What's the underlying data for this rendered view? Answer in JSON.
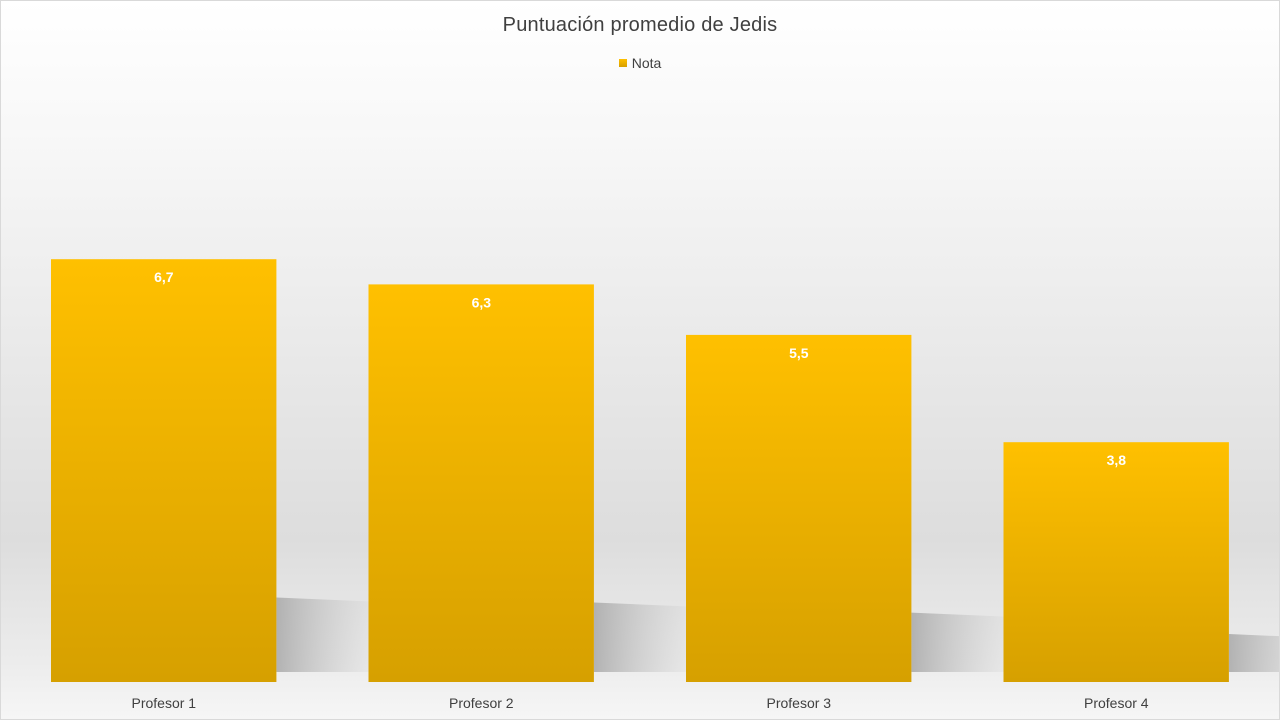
{
  "chart_data": {
    "type": "bar",
    "title": "Puntuación promedio de Jedis",
    "categories": [
      "Profesor 1",
      "Profesor 2",
      "Profesor 3",
      "Profesor 4"
    ],
    "series": [
      {
        "name": "Nota",
        "values": [
          6.7,
          6.3,
          5.5,
          3.8
        ],
        "labels": [
          "6,7",
          "6,3",
          "5,5",
          "3,8"
        ]
      }
    ],
    "ylim": [
      0,
      9.08
    ],
    "grid": false,
    "legend_position": "top",
    "colors": {
      "bar_top": "#ffc000",
      "bar_bottom": "#d6a000",
      "data_label": "#ffffff",
      "text": "#404040"
    }
  }
}
